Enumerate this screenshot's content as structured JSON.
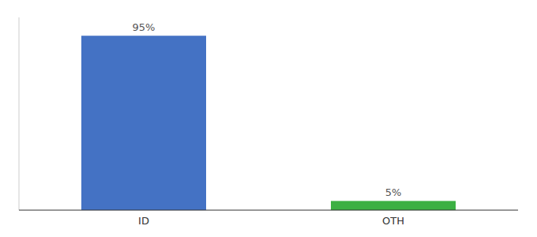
{
  "chart_data": {
    "type": "bar",
    "categories": [
      "ID",
      "OTH"
    ],
    "values": [
      95,
      5
    ],
    "value_labels": [
      "95%",
      "5%"
    ],
    "colors": [
      "#4472c4",
      "#3cb043"
    ],
    "ylim": [
      0,
      105
    ],
    "data_labels": true,
    "tick_labels": "x"
  }
}
